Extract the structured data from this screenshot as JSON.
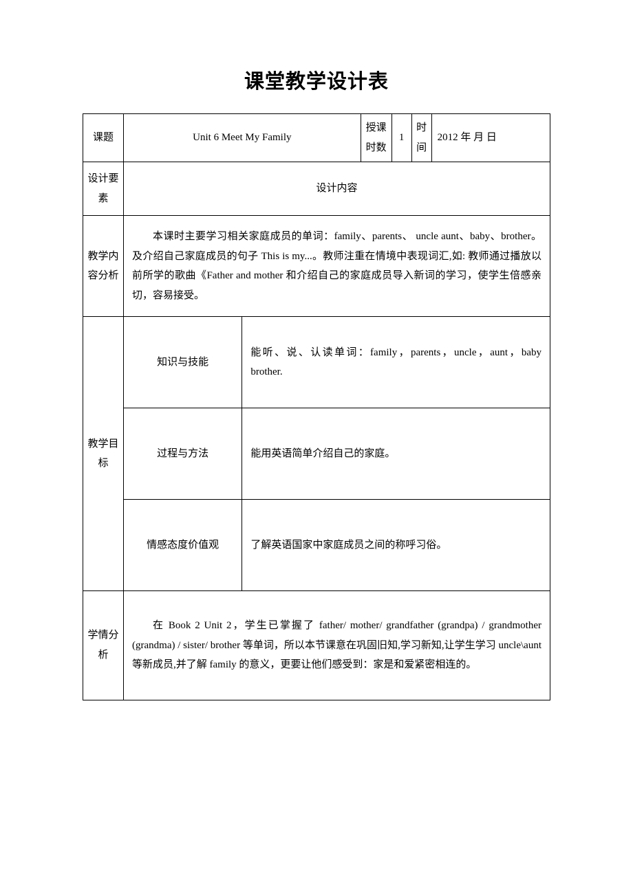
{
  "document": {
    "title": "课堂教学设计表",
    "background_color": "#ffffff",
    "text_color": "#000000",
    "border_color": "#000000",
    "title_fontsize": 29,
    "body_fontsize": 15,
    "line_height": 1.9
  },
  "header_row": {
    "topic_label": "课题",
    "topic_value": "Unit 6 Meet My Family",
    "lessons_label": "授课时数",
    "lessons_value": "1",
    "time_label": "时间",
    "time_value": "2012 年 月 日"
  },
  "design_row": {
    "element_label": "设计要素",
    "content_label": "设计内容"
  },
  "content_analysis": {
    "label": "教学内容分析",
    "text": "本课时主要学习相关家庭成员的单词：family、parents、 uncle aunt、baby、brother。及介绍自己家庭成员的句子 This is my...。教师注重在情境中表现词汇,如: 教师通过播放以前所学的歌曲《Father and mother 和介绍自己的家庭成员导入新词的学习，使学生倍感亲切，容易接受。"
  },
  "objectives": {
    "label": "教学目标",
    "knowledge": {
      "sub_label": "知识与技能",
      "text": "能听、说、认读单词：family，parents，uncle，aunt，baby brother."
    },
    "process": {
      "sub_label": "过程与方法",
      "text": "能用英语简单介绍自己的家庭。"
    },
    "attitude": {
      "sub_label": "情感态度价值观",
      "text": "了解英语国家中家庭成员之间的称呼习俗。"
    }
  },
  "learner_analysis": {
    "label": "学情分析",
    "text": "在 Book 2 Unit 2，学生已掌握了 father/ mother/ grandfather (grandpa) / grandmother (grandma) / sister/ brother 等单词，所以本节课意在巩固旧知,学习新知,让学生学习 uncle\\aunt 等新成员,并了解 family 的意义，更要让他们感受到：家是和爱紧密相连的。"
  }
}
